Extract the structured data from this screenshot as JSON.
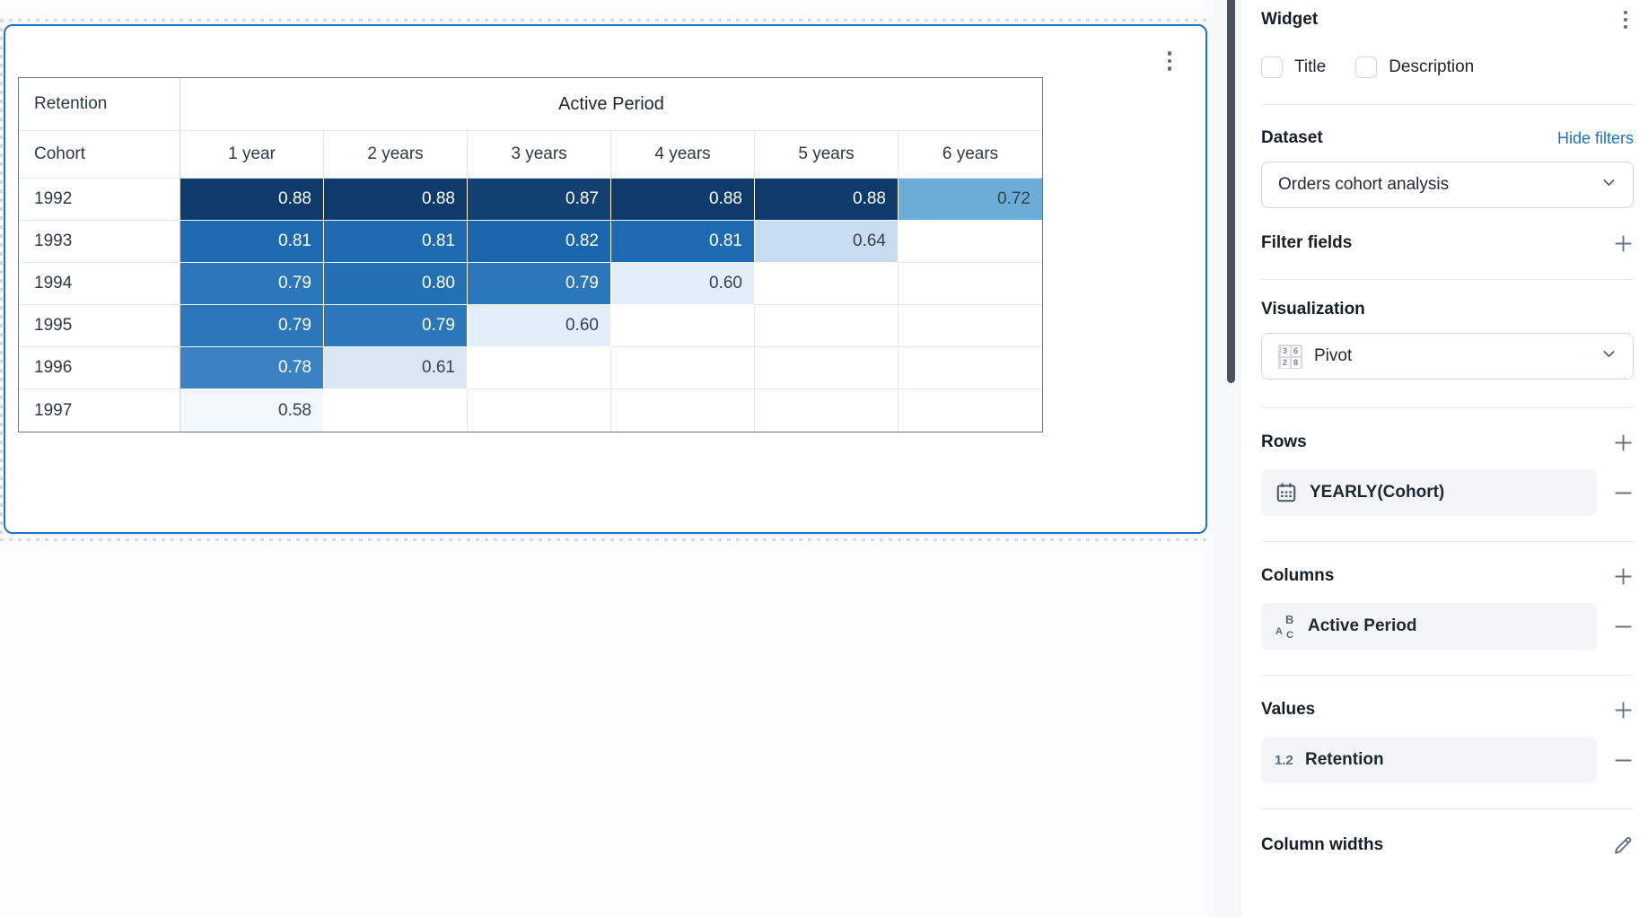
{
  "pivot": {
    "corner_label": "Retention",
    "group_header": "Active Period",
    "row_dim_header": "Cohort",
    "col_headers": [
      "1 year",
      "2 years",
      "3 years",
      "4 years",
      "5 years",
      "6 years"
    ],
    "rows": [
      {
        "label": "1992",
        "cells": [
          {
            "v": "0.88",
            "bg": "#0e3a6c",
            "fg": "#ffffff"
          },
          {
            "v": "0.88",
            "bg": "#0e3a6c",
            "fg": "#ffffff"
          },
          {
            "v": "0.87",
            "bg": "#114071",
            "fg": "#ffffff"
          },
          {
            "v": "0.88",
            "bg": "#0e3a6c",
            "fg": "#ffffff"
          },
          {
            "v": "0.88",
            "bg": "#0e3a6c",
            "fg": "#ffffff"
          },
          {
            "v": "0.72",
            "bg": "#6cadd8",
            "fg": "#36434f"
          }
        ]
      },
      {
        "label": "1993",
        "cells": [
          {
            "v": "0.81",
            "bg": "#1f6bb2",
            "fg": "#ffffff"
          },
          {
            "v": "0.81",
            "bg": "#1f6bb2",
            "fg": "#ffffff"
          },
          {
            "v": "0.82",
            "bg": "#1a66ad",
            "fg": "#ffffff"
          },
          {
            "v": "0.81",
            "bg": "#1f6bb2",
            "fg": "#ffffff"
          },
          {
            "v": "0.64",
            "bg": "#c8ddef",
            "fg": "#36434f"
          },
          null
        ]
      },
      {
        "label": "1994",
        "cells": [
          {
            "v": "0.79",
            "bg": "#2b77ba",
            "fg": "#ffffff"
          },
          {
            "v": "0.80",
            "bg": "#2470b5",
            "fg": "#ffffff"
          },
          {
            "v": "0.79",
            "bg": "#2b77ba",
            "fg": "#ffffff"
          },
          {
            "v": "0.60",
            "bg": "#e3eef8",
            "fg": "#36434f"
          },
          null,
          null
        ]
      },
      {
        "label": "1995",
        "cells": [
          {
            "v": "0.79",
            "bg": "#2b77ba",
            "fg": "#ffffff"
          },
          {
            "v": "0.79",
            "bg": "#2b77ba",
            "fg": "#ffffff"
          },
          {
            "v": "0.60",
            "bg": "#e3eef8",
            "fg": "#36434f"
          },
          null,
          null,
          null
        ]
      },
      {
        "label": "1996",
        "cells": [
          {
            "v": "0.78",
            "bg": "#3a82c1",
            "fg": "#ffffff"
          },
          {
            "v": "0.61",
            "bg": "#d9e7f4",
            "fg": "#36434f"
          },
          null,
          null,
          null,
          null
        ]
      },
      {
        "label": "1997",
        "cells": [
          {
            "v": "0.58",
            "bg": "#f2f7fc",
            "fg": "#36434f"
          },
          null,
          null,
          null,
          null,
          null
        ]
      }
    ]
  },
  "chart_data": {
    "type": "heatmap",
    "title": "Retention",
    "x_group_label": "Active Period",
    "ylabel": "Cohort",
    "columns": [
      "1 year",
      "2 years",
      "3 years",
      "4 years",
      "5 years",
      "6 years"
    ],
    "row_labels": [
      "1992",
      "1993",
      "1994",
      "1995",
      "1996",
      "1997"
    ],
    "values": [
      [
        0.88,
        0.88,
        0.87,
        0.88,
        0.88,
        0.72
      ],
      [
        0.81,
        0.81,
        0.82,
        0.81,
        0.64,
        null
      ],
      [
        0.79,
        0.8,
        0.79,
        0.6,
        null,
        null
      ],
      [
        0.79,
        0.79,
        0.6,
        null,
        null,
        null
      ],
      [
        0.78,
        0.61,
        null,
        null,
        null,
        null
      ],
      [
        0.58,
        null,
        null,
        null,
        null,
        null
      ]
    ],
    "color_scale": "blues",
    "legend": "off"
  },
  "sidebar": {
    "title": "Widget",
    "checkboxes": [
      {
        "label": "Title",
        "checked": false
      },
      {
        "label": "Description",
        "checked": false
      }
    ],
    "dataset": {
      "heading": "Dataset",
      "link": "Hide filters",
      "selected": "Orders cohort analysis"
    },
    "filter_fields": {
      "heading": "Filter fields"
    },
    "visualization": {
      "heading": "Visualization",
      "selected": "Pivot",
      "icon_numbers": [
        "3",
        "6",
        "2",
        "8"
      ]
    },
    "rows_section": {
      "heading": "Rows",
      "item": "YEARLY(Cohort)"
    },
    "columns_section": {
      "heading": "Columns",
      "item": "Active Period"
    },
    "values_section": {
      "heading": "Values",
      "item": "Retention",
      "item_icon_text": "1.2"
    },
    "column_widths": {
      "heading": "Column widths"
    }
  },
  "colors": {
    "accent_blue": "#1f74c0",
    "link_blue": "#1a72c5",
    "scroll_thumb": "#46535e",
    "chip_bg": "#f4f5f6"
  }
}
